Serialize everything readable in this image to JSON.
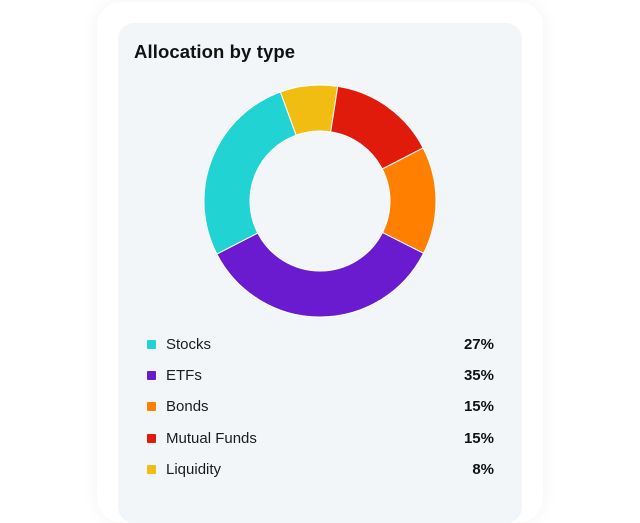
{
  "card": {
    "title": "Allocation by type"
  },
  "chart_data": {
    "type": "pie",
    "donut": true,
    "categories": [
      "Stocks",
      "ETFs",
      "Bonds",
      "Mutual Funds",
      "Liquidity"
    ],
    "values": [
      27,
      35,
      15,
      15,
      8
    ],
    "labels": [
      "27%",
      "35%",
      "15%",
      "15%",
      "8%"
    ],
    "colors": [
      "#22d3d3",
      "#6a1bd0",
      "#ff8000",
      "#e01b0b",
      "#f2bd13"
    ],
    "draw_order": [
      "Liquidity",
      "Mutual Funds",
      "Bonds",
      "ETFs",
      "Stocks"
    ],
    "legend": "below"
  }
}
